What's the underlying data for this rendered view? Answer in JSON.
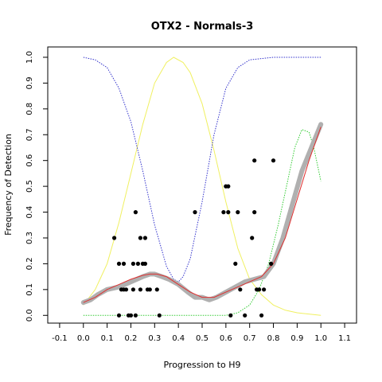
{
  "chart_data": {
    "type": "scatter",
    "title": "OTX2 - Normals-3",
    "xlabel": "Progression to H9",
    "ylabel": "Frequency of Detection",
    "xlim": [
      -0.15,
      1.15
    ],
    "ylim": [
      -0.03,
      1.04
    ],
    "xticks": [
      "-0.1",
      "0.0",
      "0.1",
      "0.2",
      "0.3",
      "0.4",
      "0.5",
      "0.6",
      "0.7",
      "0.8",
      "0.9",
      "1.0",
      "1.1"
    ],
    "xtick_values": [
      -0.1,
      0.0,
      0.1,
      0.2,
      0.3,
      0.4,
      0.5,
      0.6,
      0.7,
      0.8,
      0.9,
      1.0,
      1.1
    ],
    "yticks": [
      "0.0",
      "0.1",
      "0.2",
      "0.3",
      "0.4",
      "0.5",
      "0.6",
      "0.7",
      "0.8",
      "0.9",
      "1.0"
    ],
    "ytick_values": [
      0.0,
      0.1,
      0.2,
      0.3,
      0.4,
      0.5,
      0.6,
      0.7,
      0.8,
      0.9,
      1.0
    ],
    "grid": false,
    "colors": {
      "points": "#000000",
      "smoothed": "#b0b0b0",
      "fit": "#e03030",
      "blue": "#3333cc",
      "yellow": "#f0f060",
      "green": "#33cc33"
    },
    "points": [
      {
        "x": 0.13,
        "y": 0.3
      },
      {
        "x": 0.15,
        "y": 0.2
      },
      {
        "x": 0.16,
        "y": 0.1
      },
      {
        "x": 0.15,
        "y": 0.0
      },
      {
        "x": 0.17,
        "y": 0.2
      },
      {
        "x": 0.17,
        "y": 0.1
      },
      {
        "x": 0.18,
        "y": 0.1
      },
      {
        "x": 0.19,
        "y": 0.0
      },
      {
        "x": 0.2,
        "y": 0.0
      },
      {
        "x": 0.21,
        "y": 0.2
      },
      {
        "x": 0.22,
        "y": 0.4
      },
      {
        "x": 0.21,
        "y": 0.1
      },
      {
        "x": 0.22,
        "y": 0.0
      },
      {
        "x": 0.23,
        "y": 0.2
      },
      {
        "x": 0.24,
        "y": 0.3
      },
      {
        "x": 0.24,
        "y": 0.1
      },
      {
        "x": 0.25,
        "y": 0.2
      },
      {
        "x": 0.26,
        "y": 0.3
      },
      {
        "x": 0.26,
        "y": 0.2
      },
      {
        "x": 0.27,
        "y": 0.1
      },
      {
        "x": 0.28,
        "y": 0.1
      },
      {
        "x": 0.31,
        "y": 0.1
      },
      {
        "x": 0.32,
        "y": 0.0
      },
      {
        "x": 0.47,
        "y": 0.4
      },
      {
        "x": 0.59,
        "y": 0.4
      },
      {
        "x": 0.6,
        "y": 0.5
      },
      {
        "x": 0.61,
        "y": 0.5
      },
      {
        "x": 0.61,
        "y": 0.4
      },
      {
        "x": 0.62,
        "y": 0.0
      },
      {
        "x": 0.64,
        "y": 0.2
      },
      {
        "x": 0.65,
        "y": 0.4
      },
      {
        "x": 0.66,
        "y": 0.1
      },
      {
        "x": 0.68,
        "y": 0.0
      },
      {
        "x": 0.71,
        "y": 0.3
      },
      {
        "x": 0.72,
        "y": 0.6
      },
      {
        "x": 0.72,
        "y": 0.4
      },
      {
        "x": 0.73,
        "y": 0.1
      },
      {
        "x": 0.74,
        "y": 0.1
      },
      {
        "x": 0.75,
        "y": 0.0
      },
      {
        "x": 0.76,
        "y": 0.1
      },
      {
        "x": 0.79,
        "y": 0.2
      },
      {
        "x": 0.8,
        "y": 0.6
      }
    ],
    "smoothed": [
      {
        "x": 0.0,
        "y": 0.05
      },
      {
        "x": 0.03,
        "y": 0.06
      },
      {
        "x": 0.06,
        "y": 0.08
      },
      {
        "x": 0.1,
        "y": 0.1
      },
      {
        "x": 0.15,
        "y": 0.11
      },
      {
        "x": 0.2,
        "y": 0.13
      },
      {
        "x": 0.25,
        "y": 0.15
      },
      {
        "x": 0.28,
        "y": 0.16
      },
      {
        "x": 0.3,
        "y": 0.16
      },
      {
        "x": 0.33,
        "y": 0.15
      },
      {
        "x": 0.36,
        "y": 0.14
      },
      {
        "x": 0.4,
        "y": 0.12
      },
      {
        "x": 0.44,
        "y": 0.09
      },
      {
        "x": 0.47,
        "y": 0.07
      },
      {
        "x": 0.5,
        "y": 0.07
      },
      {
        "x": 0.53,
        "y": 0.06
      },
      {
        "x": 0.56,
        "y": 0.07
      },
      {
        "x": 0.6,
        "y": 0.09
      },
      {
        "x": 0.64,
        "y": 0.11
      },
      {
        "x": 0.68,
        "y": 0.13
      },
      {
        "x": 0.72,
        "y": 0.14
      },
      {
        "x": 0.76,
        "y": 0.15
      },
      {
        "x": 0.8,
        "y": 0.2
      },
      {
        "x": 0.84,
        "y": 0.3
      },
      {
        "x": 0.88,
        "y": 0.43
      },
      {
        "x": 0.92,
        "y": 0.56
      },
      {
        "x": 0.96,
        "y": 0.65
      },
      {
        "x": 1.0,
        "y": 0.74
      }
    ],
    "fit": [
      {
        "x": 0.0,
        "y": 0.05
      },
      {
        "x": 0.05,
        "y": 0.07
      },
      {
        "x": 0.1,
        "y": 0.1
      },
      {
        "x": 0.15,
        "y": 0.12
      },
      {
        "x": 0.2,
        "y": 0.14
      },
      {
        "x": 0.25,
        "y": 0.155
      },
      {
        "x": 0.28,
        "y": 0.16
      },
      {
        "x": 0.31,
        "y": 0.16
      },
      {
        "x": 0.35,
        "y": 0.15
      },
      {
        "x": 0.4,
        "y": 0.12
      },
      {
        "x": 0.45,
        "y": 0.09
      },
      {
        "x": 0.5,
        "y": 0.07
      },
      {
        "x": 0.55,
        "y": 0.07
      },
      {
        "x": 0.6,
        "y": 0.09
      },
      {
        "x": 0.65,
        "y": 0.11
      },
      {
        "x": 0.7,
        "y": 0.13
      },
      {
        "x": 0.75,
        "y": 0.15
      },
      {
        "x": 0.8,
        "y": 0.2
      },
      {
        "x": 0.85,
        "y": 0.3
      },
      {
        "x": 0.9,
        "y": 0.45
      },
      {
        "x": 0.95,
        "y": 0.6
      },
      {
        "x": 1.0,
        "y": 0.73
      }
    ],
    "blue_curve": [
      {
        "x": 0.0,
        "y": 1.0
      },
      {
        "x": 0.05,
        "y": 0.99
      },
      {
        "x": 0.1,
        "y": 0.96
      },
      {
        "x": 0.15,
        "y": 0.88
      },
      {
        "x": 0.2,
        "y": 0.75
      },
      {
        "x": 0.25,
        "y": 0.56
      },
      {
        "x": 0.3,
        "y": 0.35
      },
      {
        "x": 0.35,
        "y": 0.19
      },
      {
        "x": 0.38,
        "y": 0.14
      },
      {
        "x": 0.4,
        "y": 0.13
      },
      {
        "x": 0.42,
        "y": 0.15
      },
      {
        "x": 0.45,
        "y": 0.22
      },
      {
        "x": 0.5,
        "y": 0.44
      },
      {
        "x": 0.55,
        "y": 0.7
      },
      {
        "x": 0.6,
        "y": 0.88
      },
      {
        "x": 0.65,
        "y": 0.96
      },
      {
        "x": 0.7,
        "y": 0.99
      },
      {
        "x": 0.8,
        "y": 1.0
      },
      {
        "x": 0.9,
        "y": 1.0
      },
      {
        "x": 1.0,
        "y": 1.0
      }
    ],
    "yellow_curve": [
      {
        "x": 0.0,
        "y": 0.04
      },
      {
        "x": 0.05,
        "y": 0.1
      },
      {
        "x": 0.1,
        "y": 0.2
      },
      {
        "x": 0.15,
        "y": 0.36
      },
      {
        "x": 0.2,
        "y": 0.55
      },
      {
        "x": 0.25,
        "y": 0.74
      },
      {
        "x": 0.3,
        "y": 0.9
      },
      {
        "x": 0.35,
        "y": 0.98
      },
      {
        "x": 0.38,
        "y": 1.0
      },
      {
        "x": 0.42,
        "y": 0.98
      },
      {
        "x": 0.45,
        "y": 0.94
      },
      {
        "x": 0.5,
        "y": 0.82
      },
      {
        "x": 0.55,
        "y": 0.64
      },
      {
        "x": 0.6,
        "y": 0.44
      },
      {
        "x": 0.65,
        "y": 0.26
      },
      {
        "x": 0.7,
        "y": 0.14
      },
      {
        "x": 0.75,
        "y": 0.08
      },
      {
        "x": 0.8,
        "y": 0.04
      },
      {
        "x": 0.85,
        "y": 0.02
      },
      {
        "x": 0.9,
        "y": 0.01
      },
      {
        "x": 1.0,
        "y": 0.0
      }
    ],
    "green_curve": [
      {
        "x": 0.0,
        "y": 0.0
      },
      {
        "x": 0.3,
        "y": 0.0
      },
      {
        "x": 0.6,
        "y": 0.0
      },
      {
        "x": 0.65,
        "y": 0.01
      },
      {
        "x": 0.7,
        "y": 0.04
      },
      {
        "x": 0.74,
        "y": 0.1
      },
      {
        "x": 0.78,
        "y": 0.2
      },
      {
        "x": 0.82,
        "y": 0.35
      },
      {
        "x": 0.86,
        "y": 0.52
      },
      {
        "x": 0.89,
        "y": 0.65
      },
      {
        "x": 0.92,
        "y": 0.72
      },
      {
        "x": 0.95,
        "y": 0.71
      },
      {
        "x": 0.97,
        "y": 0.65
      },
      {
        "x": 1.0,
        "y": 0.52
      }
    ]
  }
}
